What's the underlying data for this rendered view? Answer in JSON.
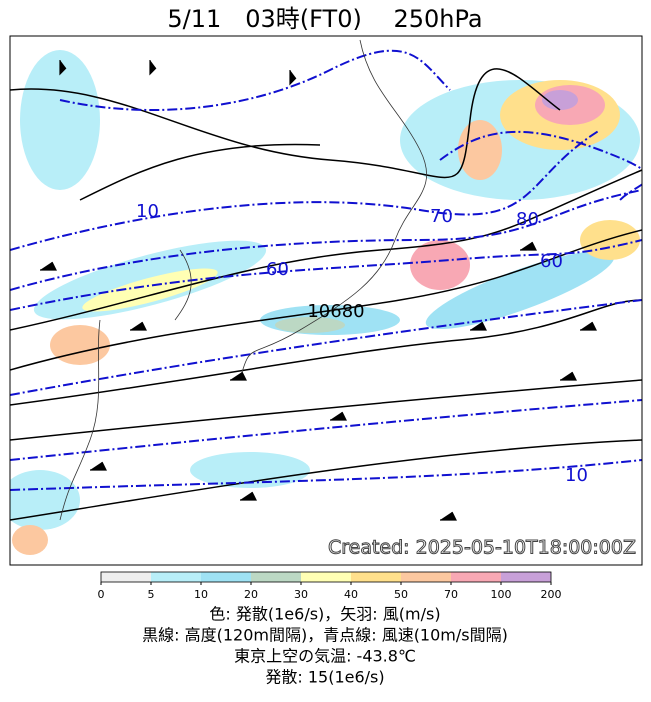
{
  "header": {
    "title": "5/11　03時(FT0)　 250hPa"
  },
  "map": {
    "contour_labels": [
      "10",
      "70",
      "80",
      "60",
      "60",
      "10680",
      "10"
    ],
    "stamp": "Created: 2025-05-10T18:00:00Z"
  },
  "colorbar": {
    "ticks": [
      0,
      5,
      10,
      20,
      30,
      40,
      50,
      70,
      100,
      200
    ],
    "colors": [
      "#eeeeee",
      "#b8eef8",
      "#9fe2f4",
      "#bcd8c4",
      "#ffffb4",
      "#ffe08c",
      "#fcc8a0",
      "#f8a8b4",
      "#c8a0d8"
    ]
  },
  "caption": [
    "色: 発散(1e6/s)，矢羽: 風(m/s)",
    "黒線: 高度(120m間隔)，青点線: 風速(10m/s間隔)",
    "東京上空の気温: -43.8℃",
    "発散: 15(1e6/s)"
  ]
}
